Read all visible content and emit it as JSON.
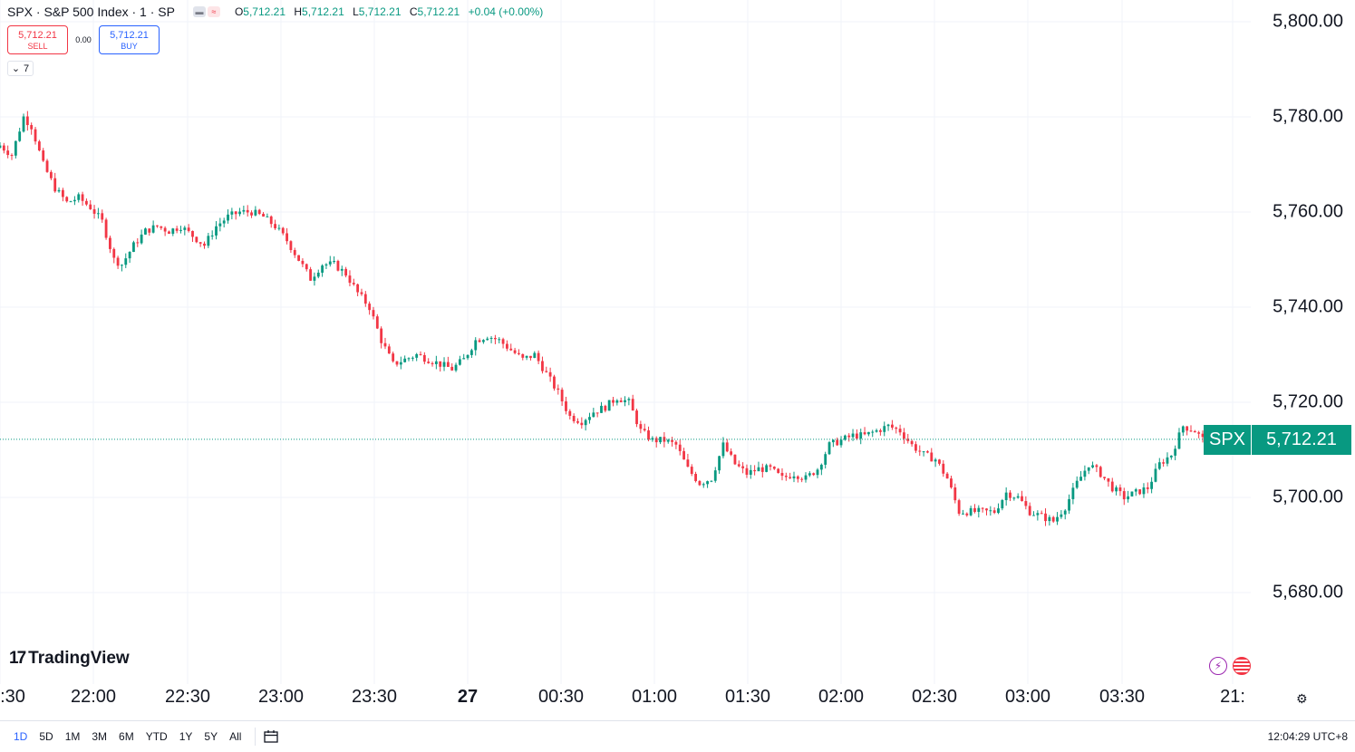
{
  "legend": {
    "title": "SPX · S&P 500 Index · 1 · SP",
    "pill_icons": [
      "minus-icon",
      "wave-icon"
    ],
    "open_label": "O",
    "open": "5,712.21",
    "high_label": "H",
    "high": "5,712.21",
    "low_label": "L",
    "low": "5,712.21",
    "close_label": "C",
    "close": "5,712.21",
    "change": "+0.04 (+0.00%)"
  },
  "trade": {
    "sell_price": "5,712.21",
    "sell_label": "SELL",
    "spread": "0.00",
    "buy_price": "5,712.21",
    "buy_label": "BUY"
  },
  "collapse": {
    "count": "7"
  },
  "price_axis": {
    "labels": [
      "5,800.00",
      "5,780.00",
      "5,760.00",
      "5,740.00",
      "5,720.00",
      "5,700.00",
      "5,680.00"
    ]
  },
  "last_price": {
    "symbol": "SPX",
    "value": "5,712.21"
  },
  "time_axis": {
    "labels": [
      ":30",
      "22:00",
      "22:30",
      "23:00",
      "23:30",
      "27",
      "00:30",
      "01:00",
      "01:30",
      "02:00",
      "02:30",
      "03:00",
      "03:30",
      "21:"
    ]
  },
  "branding": {
    "logo_mark": "17",
    "logo_text": "TradingView"
  },
  "bottom_bar": {
    "ranges": [
      "1D",
      "5D",
      "1M",
      "3M",
      "6M",
      "YTD",
      "1Y",
      "5Y",
      "All"
    ],
    "active_range": "1D",
    "clock": "12:04:29 UTC+8"
  },
  "colors": {
    "up": "#089981",
    "down": "#f23645",
    "accent": "#2962ff",
    "grid": "#f0f3fa"
  },
  "chart_data": {
    "type": "candlestick",
    "symbol": "SPX",
    "interval": "1",
    "ylim": [
      5665,
      5803
    ],
    "y_ticks": [
      5680,
      5700,
      5720,
      5740,
      5760,
      5780,
      5800
    ],
    "x_ticks": [
      ":30",
      "22:00",
      "22:30",
      "23:00",
      "23:30",
      "27",
      "00:30",
      "01:00",
      "01:30",
      "02:00",
      "02:30",
      "03:00",
      "03:30",
      "21:"
    ],
    "last": 5712.21,
    "close_path": [
      [
        0,
        5774
      ],
      [
        3,
        5772
      ],
      [
        6,
        5780
      ],
      [
        8,
        5778
      ],
      [
        11,
        5770
      ],
      [
        14,
        5765
      ],
      [
        17,
        5762
      ],
      [
        20,
        5763
      ],
      [
        23,
        5761
      ],
      [
        26,
        5758
      ],
      [
        29,
        5750
      ],
      [
        31,
        5749
      ],
      [
        34,
        5753
      ],
      [
        37,
        5756
      ],
      [
        40,
        5757
      ],
      [
        43,
        5756
      ],
      [
        46,
        5757
      ],
      [
        49,
        5755
      ],
      [
        52,
        5753
      ],
      [
        55,
        5757
      ],
      [
        58,
        5759
      ],
      [
        61,
        5760
      ],
      [
        64,
        5760
      ],
      [
        67,
        5759
      ],
      [
        70,
        5757
      ],
      [
        73,
        5754
      ],
      [
        76,
        5750
      ],
      [
        79,
        5746
      ],
      [
        82,
        5749
      ],
      [
        85,
        5749
      ],
      [
        88,
        5747
      ],
      [
        91,
        5743
      ],
      [
        94,
        5740
      ],
      [
        97,
        5733
      ],
      [
        100,
        5728
      ],
      [
        103,
        5729
      ],
      [
        106,
        5730
      ],
      [
        109,
        5729
      ],
      [
        112,
        5728
      ],
      [
        115,
        5727
      ],
      [
        118,
        5729
      ],
      [
        121,
        5733
      ],
      [
        124,
        5734
      ],
      [
        127,
        5733
      ],
      [
        130,
        5731
      ],
      [
        133,
        5729
      ],
      [
        136,
        5730
      ],
      [
        139,
        5726
      ],
      [
        142,
        5722
      ],
      [
        145,
        5717
      ],
      [
        148,
        5716
      ],
      [
        151,
        5718
      ],
      [
        154,
        5719
      ],
      [
        157,
        5721
      ],
      [
        160,
        5720
      ],
      [
        163,
        5714
      ],
      [
        166,
        5712
      ],
      [
        169,
        5712
      ],
      [
        172,
        5711
      ],
      [
        175,
        5706
      ],
      [
        178,
        5703
      ],
      [
        181,
        5704
      ],
      [
        184,
        5711
      ],
      [
        187,
        5707
      ],
      [
        190,
        5705
      ],
      [
        193,
        5706
      ],
      [
        196,
        5706
      ],
      [
        199,
        5704
      ],
      [
        202,
        5705
      ],
      [
        205,
        5704
      ],
      [
        208,
        5706
      ],
      [
        211,
        5711
      ],
      [
        214,
        5712
      ],
      [
        217,
        5713
      ],
      [
        220,
        5713
      ],
      [
        223,
        5714
      ],
      [
        226,
        5715
      ],
      [
        229,
        5714
      ],
      [
        232,
        5711
      ],
      [
        235,
        5709
      ],
      [
        238,
        5708
      ],
      [
        241,
        5704
      ],
      [
        244,
        5697
      ],
      [
        247,
        5697
      ],
      [
        250,
        5697
      ],
      [
        253,
        5697
      ],
      [
        256,
        5701
      ],
      [
        259,
        5700
      ],
      [
        262,
        5697
      ],
      [
        265,
        5696
      ],
      [
        268,
        5695
      ],
      [
        271,
        5698
      ],
      [
        274,
        5703
      ],
      [
        277,
        5707
      ],
      [
        280,
        5705
      ],
      [
        283,
        5702
      ],
      [
        286,
        5700
      ],
      [
        289,
        5701
      ],
      [
        292,
        5702
      ],
      [
        295,
        5707
      ],
      [
        298,
        5709
      ],
      [
        301,
        5715
      ],
      [
        304,
        5714
      ],
      [
        306,
        5712.21
      ]
    ]
  }
}
